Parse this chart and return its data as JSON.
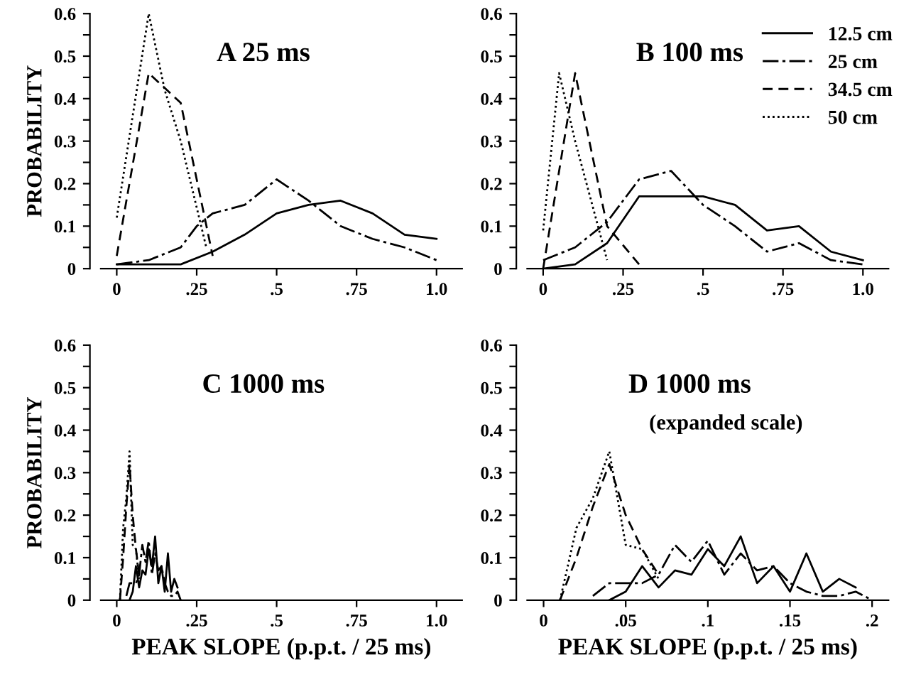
{
  "chart_data": [
    {
      "type": "line",
      "title": "A 25 ms",
      "ylabel": "PROBABILITY",
      "xlim": [
        -0.05,
        1.08
      ],
      "ylim": [
        0,
        0.6
      ],
      "xticks": [
        {
          "value": 0,
          "label": "0"
        },
        {
          "value": 0.25,
          "label": ".25"
        },
        {
          "value": 0.5,
          "label": ".5"
        },
        {
          "value": 0.75,
          "label": ".75"
        },
        {
          "value": 1.0,
          "label": "1.0"
        }
      ],
      "yticks": [
        {
          "value": 0,
          "label": "0"
        },
        {
          "value": 0.05,
          "label": null
        },
        0.1,
        {
          "value": 0.15,
          "label": null
        },
        0.2,
        {
          "value": 0.25,
          "label": null
        },
        0.3,
        {
          "value": 0.35,
          "label": null
        },
        0.4,
        {
          "value": 0.45,
          "label": null
        },
        0.5,
        {
          "value": 0.55,
          "label": null
        },
        0.6
      ],
      "grid": false,
      "legend": false,
      "series": [
        {
          "color": "#000000",
          "line_style": "solid",
          "x": [
            0,
            0.1,
            0.2,
            0.3,
            0.4,
            0.5,
            0.6,
            0.7,
            0.8,
            0.9,
            1.0
          ],
          "values": [
            0.01,
            0.01,
            0.01,
            0.04,
            0.08,
            0.13,
            0.15,
            0.16,
            0.13,
            0.08,
            0.07
          ]
        },
        {
          "color": "#000000",
          "line_style": "dashdot",
          "x": [
            0,
            0.1,
            0.2,
            0.25,
            0.3,
            0.4,
            0.5,
            0.6,
            0.7,
            0.8,
            0.9,
            1.0
          ],
          "values": [
            0.01,
            0.02,
            0.05,
            0.1,
            0.13,
            0.15,
            0.21,
            0.16,
            0.1,
            0.07,
            0.05,
            0.02
          ]
        },
        {
          "color": "#000000",
          "line_style": "dashed",
          "x": [
            0,
            0.1,
            0.2,
            0.3
          ],
          "values": [
            0.03,
            0.46,
            0.39,
            0.03
          ]
        },
        {
          "color": "#000000",
          "line_style": "dotted",
          "x": [
            0,
            0.1,
            0.15,
            0.2,
            0.28
          ],
          "values": [
            0.12,
            0.6,
            0.42,
            0.3,
            0.05
          ]
        }
      ]
    },
    {
      "type": "line",
      "title": "B 100 ms",
      "xlim": [
        -0.05,
        1.08
      ],
      "ylim": [
        0,
        0.6
      ],
      "xticks": [
        {
          "value": 0,
          "label": "0"
        },
        {
          "value": 0.25,
          "label": ".25"
        },
        {
          "value": 0.5,
          "label": ".5"
        },
        {
          "value": 0.75,
          "label": ".75"
        },
        {
          "value": 1.0,
          "label": "1.0"
        }
      ],
      "yticks": [
        {
          "value": 0,
          "label": "0"
        },
        {
          "value": 0.05,
          "label": null
        },
        0.1,
        {
          "value": 0.15,
          "label": null
        },
        0.2,
        {
          "value": 0.25,
          "label": null
        },
        0.3,
        {
          "value": 0.35,
          "label": null
        },
        0.4,
        {
          "value": 0.45,
          "label": null
        },
        0.5,
        {
          "value": 0.55,
          "label": null
        },
        0.6
      ],
      "grid": false,
      "legend": "top right",
      "series": [
        {
          "name": "12.5 cm",
          "color": "#000000",
          "line_style": "solid",
          "x": [
            0,
            0.1,
            0.2,
            0.3,
            0.4,
            0.5,
            0.6,
            0.7,
            0.8,
            0.9,
            1.0
          ],
          "values": [
            0.0,
            0.01,
            0.06,
            0.17,
            0.17,
            0.17,
            0.15,
            0.09,
            0.1,
            0.04,
            0.02
          ]
        },
        {
          "name": "25 cm",
          "color": "#000000",
          "line_style": "dashdot",
          "x": [
            0,
            0.1,
            0.2,
            0.3,
            0.4,
            0.5,
            0.6,
            0.7,
            0.8,
            0.9,
            1.0
          ],
          "values": [
            0.02,
            0.05,
            0.11,
            0.21,
            0.23,
            0.15,
            0.1,
            0.04,
            0.06,
            0.02,
            0.01
          ]
        },
        {
          "name": "34.5 cm",
          "color": "#000000",
          "line_style": "dashed",
          "x": [
            0,
            0.1,
            0.2,
            0.3
          ],
          "values": [
            0.0,
            0.46,
            0.1,
            0.01
          ]
        },
        {
          "name": "50 cm",
          "color": "#000000",
          "line_style": "dotted",
          "x": [
            0,
            0.05,
            0.1,
            0.2
          ],
          "values": [
            0.09,
            0.46,
            0.3,
            0.02
          ]
        }
      ]
    },
    {
      "type": "line",
      "title": "C 1000 ms",
      "ylabel": "PROBABILITY",
      "xlabel": "PEAK SLOPE (p.p.t. / 25 ms)",
      "xlim": [
        -0.05,
        1.08
      ],
      "ylim": [
        0,
        0.6
      ],
      "xticks": [
        {
          "value": 0,
          "label": "0"
        },
        {
          "value": 0.25,
          "label": ".25"
        },
        {
          "value": 0.5,
          "label": ".5"
        },
        {
          "value": 0.75,
          "label": ".75"
        },
        {
          "value": 1.0,
          "label": "1.0"
        }
      ],
      "yticks": [
        {
          "value": 0,
          "label": "0"
        },
        {
          "value": 0.05,
          "label": null
        },
        0.1,
        {
          "value": 0.15,
          "label": null
        },
        0.2,
        {
          "value": 0.25,
          "label": null
        },
        0.3,
        {
          "value": 0.35,
          "label": null
        },
        0.4,
        {
          "value": 0.45,
          "label": null
        },
        0.5,
        {
          "value": 0.55,
          "label": null
        },
        0.6
      ],
      "grid": false,
      "legend": false,
      "series": [
        {
          "color": "#000000",
          "line_style": "solid",
          "x": [
            0.04,
            0.05,
            0.06,
            0.07,
            0.08,
            0.09,
            0.1,
            0.11,
            0.12,
            0.13,
            0.14,
            0.15,
            0.16,
            0.17,
            0.18,
            0.19
          ],
          "values": [
            0.0,
            0.02,
            0.08,
            0.03,
            0.07,
            0.06,
            0.12,
            0.08,
            0.15,
            0.04,
            0.08,
            0.02,
            0.11,
            0.02,
            0.05,
            0.03
          ]
        },
        {
          "color": "#000000",
          "line_style": "dashdot",
          "x": [
            0.03,
            0.04,
            0.05,
            0.06,
            0.07,
            0.08,
            0.09,
            0.1,
            0.11,
            0.12,
            0.13,
            0.14,
            0.15,
            0.16,
            0.17,
            0.18,
            0.19,
            0.2
          ],
          "values": [
            0.01,
            0.04,
            0.04,
            0.04,
            0.06,
            0.13,
            0.09,
            0.14,
            0.06,
            0.11,
            0.07,
            0.08,
            0.04,
            0.02,
            0.01,
            0.01,
            0.02,
            0.0
          ]
        },
        {
          "color": "#000000",
          "line_style": "dashed",
          "x": [
            0.01,
            0.02,
            0.03,
            0.04,
            0.05,
            0.06,
            0.07
          ],
          "values": [
            0.0,
            0.1,
            0.22,
            0.32,
            0.2,
            0.12,
            0.06
          ]
        },
        {
          "color": "#000000",
          "line_style": "dotted",
          "x": [
            0.01,
            0.02,
            0.03,
            0.04,
            0.05,
            0.06,
            0.07
          ],
          "values": [
            0.0,
            0.17,
            0.24,
            0.35,
            0.13,
            0.12,
            0.05
          ]
        }
      ]
    },
    {
      "type": "line",
      "title": "D 1000 ms",
      "subtitle": "(expanded scale)",
      "xlabel": "PEAK SLOPE (p.p.t. / 25 ms)",
      "xlim": [
        -0.01,
        0.21
      ],
      "ylim": [
        0,
        0.6
      ],
      "xticks": [
        {
          "value": 0,
          "label": "0"
        },
        {
          "value": 0.05,
          "label": ".05"
        },
        {
          "value": 0.1,
          "label": ".1"
        },
        {
          "value": 0.15,
          "label": ".15"
        },
        {
          "value": 0.2,
          "label": ".2"
        }
      ],
      "yticks": [
        {
          "value": 0,
          "label": "0"
        },
        {
          "value": 0.05,
          "label": null
        },
        0.1,
        {
          "value": 0.15,
          "label": null
        },
        0.2,
        {
          "value": 0.25,
          "label": null
        },
        0.3,
        {
          "value": 0.35,
          "label": null
        },
        0.4,
        {
          "value": 0.45,
          "label": null
        },
        0.5,
        {
          "value": 0.55,
          "label": null
        },
        0.6
      ],
      "grid": false,
      "legend": false,
      "series": [
        {
          "color": "#000000",
          "line_style": "solid",
          "x": [
            0.04,
            0.05,
            0.06,
            0.07,
            0.08,
            0.09,
            0.1,
            0.11,
            0.12,
            0.13,
            0.14,
            0.15,
            0.16,
            0.17,
            0.18,
            0.19
          ],
          "values": [
            0.0,
            0.02,
            0.08,
            0.03,
            0.07,
            0.06,
            0.12,
            0.08,
            0.15,
            0.04,
            0.08,
            0.02,
            0.11,
            0.02,
            0.05,
            0.03
          ]
        },
        {
          "color": "#000000",
          "line_style": "dashdot",
          "x": [
            0.03,
            0.04,
            0.05,
            0.06,
            0.07,
            0.08,
            0.09,
            0.1,
            0.11,
            0.12,
            0.13,
            0.14,
            0.15,
            0.16,
            0.17,
            0.18,
            0.19,
            0.2
          ],
          "values": [
            0.01,
            0.04,
            0.04,
            0.04,
            0.06,
            0.13,
            0.09,
            0.14,
            0.06,
            0.11,
            0.07,
            0.08,
            0.04,
            0.02,
            0.01,
            0.01,
            0.02,
            0.0
          ]
        },
        {
          "color": "#000000",
          "line_style": "dashed",
          "x": [
            0.01,
            0.02,
            0.03,
            0.04,
            0.05,
            0.06,
            0.07
          ],
          "values": [
            0.0,
            0.1,
            0.22,
            0.32,
            0.2,
            0.12,
            0.06
          ]
        },
        {
          "color": "#000000",
          "line_style": "dotted",
          "x": [
            0.01,
            0.02,
            0.03,
            0.04,
            0.05,
            0.06,
            0.07
          ],
          "values": [
            0.0,
            0.17,
            0.24,
            0.35,
            0.13,
            0.12,
            0.05
          ]
        }
      ]
    }
  ]
}
